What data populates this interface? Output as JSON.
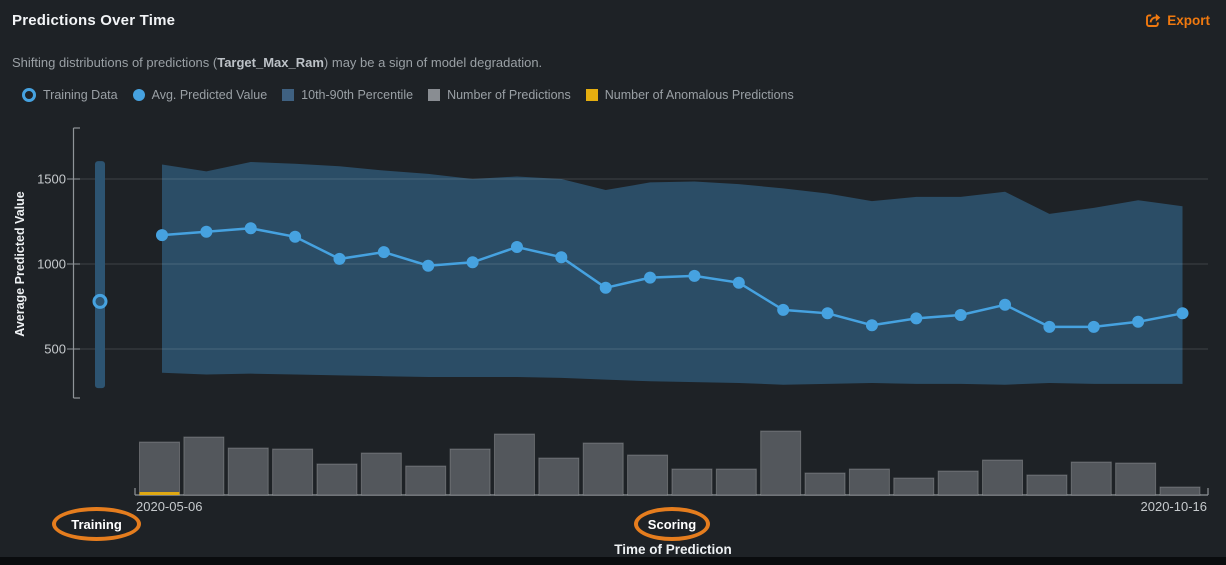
{
  "header": {
    "title": "Predictions Over Time",
    "export_label": "Export"
  },
  "subtitle": {
    "prefix": "Shifting distributions of predictions (",
    "target_name": "Target_Max_Ram",
    "suffix": ") may be a sign of model degradation."
  },
  "legend": {
    "items": [
      {
        "label": "Training Data",
        "marker": "ring"
      },
      {
        "label": "Avg. Predicted Value",
        "marker": "dot"
      },
      {
        "label": "10th-90th Percentile",
        "marker": "square-band"
      },
      {
        "label": "Number of Predictions",
        "marker": "square-gray"
      },
      {
        "label": "Number of Anomalous Predictions",
        "marker": "square-gold"
      }
    ]
  },
  "annotations": {
    "training_label": "Training",
    "scoring_label": "Scoring"
  },
  "colors": {
    "background": "#1e2226",
    "footer": "#0a0c0e",
    "title_text": "#f2f4f6",
    "muted_text": "#9aa0a5",
    "bright_text": "#c6cacd",
    "axis_line": "#8f9498",
    "grid_line": "rgba(255,255,255,0.15)",
    "accent_blue": "#46a2e0",
    "percentile_band": "#2b4d66",
    "training_bar": "#2d5471",
    "prediction_bar": "#53575c",
    "prediction_bar_border": "rgba(255,255,255,0.22)",
    "anomalous_gold": "#e0a912",
    "legend_gray": "#898d92",
    "export_orange": "#f0790f",
    "annotation_orange": "#e57d1e"
  },
  "chart_data": {
    "type": "line",
    "title": "Predictions Over Time",
    "xlabel": "Time of Prediction",
    "ylabel": "Average Predicted Value",
    "y_ticks": [
      1500,
      1000,
      500
    ],
    "ylim_estimate": [
      150,
      1800
    ],
    "x_start_label": "2020-05-06",
    "x_end_label": "2020-10-16",
    "buckets": 24,
    "training": {
      "avg_predicted": 780,
      "percentile_low": 270,
      "percentile_high": 1605
    },
    "series": [
      {
        "name": "Avg. Predicted Value",
        "values": [
          1170,
          1190,
          1210,
          1160,
          1030,
          1070,
          990,
          1010,
          1100,
          1040,
          860,
          920,
          930,
          890,
          730,
          710,
          640,
          680,
          700,
          760,
          630,
          630,
          660,
          710
        ]
      },
      {
        "name": "90th Percentile",
        "values": [
          1585,
          1545,
          1600,
          1590,
          1575,
          1550,
          1530,
          1500,
          1515,
          1500,
          1435,
          1480,
          1485,
          1470,
          1445,
          1415,
          1370,
          1395,
          1395,
          1425,
          1295,
          1330,
          1375,
          1340
        ]
      },
      {
        "name": "10th Percentile",
        "values": [
          360,
          350,
          355,
          350,
          345,
          340,
          335,
          335,
          335,
          330,
          320,
          310,
          305,
          300,
          290,
          295,
          300,
          295,
          295,
          290,
          300,
          295,
          295,
          295
        ]
      },
      {
        "name": "Number of Predictions (relative bar height, px)",
        "values": [
          53,
          58,
          47,
          46,
          31,
          42,
          29,
          46,
          61,
          37,
          52,
          40,
          26,
          26,
          64,
          22,
          26,
          17,
          24,
          35,
          20,
          33,
          32,
          8
        ]
      },
      {
        "name": "Number of Anomalous Predictions (relative bar height, px)",
        "values": [
          3,
          0,
          0,
          0,
          0,
          0,
          0,
          0,
          0,
          0,
          0,
          0,
          0,
          0,
          0,
          0,
          0,
          0,
          0,
          0,
          0,
          0,
          0,
          0
        ]
      }
    ]
  }
}
